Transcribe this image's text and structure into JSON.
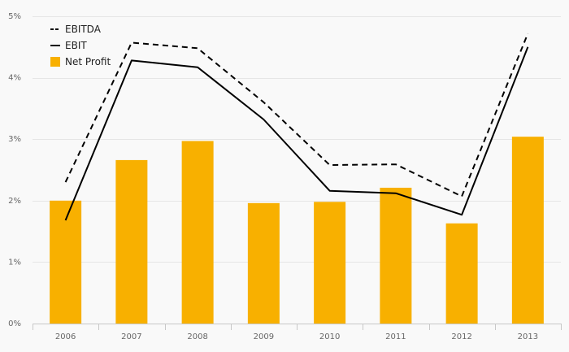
{
  "chart_data": {
    "type": "bar",
    "categories": [
      "2006",
      "2007",
      "2008",
      "2009",
      "2010",
      "2011",
      "2012",
      "2013"
    ],
    "series": [
      {
        "name": "EBITDA",
        "type": "line",
        "style": "dashed",
        "color": "#000000",
        "values": [
          2.3,
          4.57,
          4.48,
          3.6,
          2.58,
          2.59,
          2.07,
          4.72
        ]
      },
      {
        "name": "EBIT",
        "type": "line",
        "style": "solid",
        "color": "#000000",
        "values": [
          1.68,
          4.28,
          4.17,
          3.32,
          2.16,
          2.12,
          1.77,
          4.5
        ]
      },
      {
        "name": "Net Profit",
        "type": "bar",
        "color": "#f8b000",
        "values": [
          2.0,
          2.66,
          2.97,
          1.96,
          1.98,
          2.21,
          1.63,
          3.04
        ]
      }
    ],
    "yticks": [
      "0%",
      "1%",
      "2%",
      "3%",
      "4%",
      "5%"
    ],
    "ylim": [
      0,
      5
    ],
    "grid": true,
    "legend": "top-left"
  }
}
